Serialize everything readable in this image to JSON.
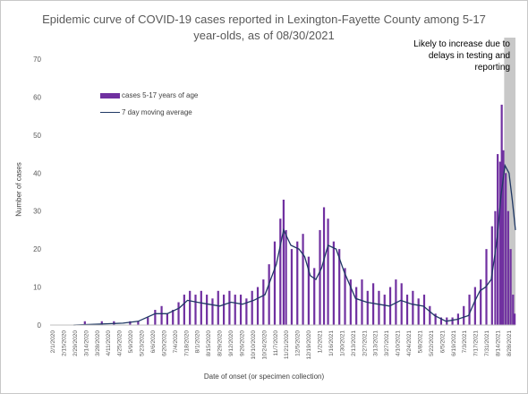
{
  "chart_data": {
    "type": "bar",
    "title": "Epidemic curve of COVID-19 cases reported in Lexington-Fayette County among 5-17 year-olds, as of 08/30/2021",
    "title_lines": [
      "Epidemic curve of COVID-19 cases reported in Lexington-Fayette County among 5-17",
      "year-olds, as of 08/30/2021"
    ],
    "xlabel": "Date of onset (or specimen collection)",
    "ylabel": "Number of cases",
    "ylim": [
      0,
      70
    ],
    "yticks": [
      0,
      10,
      20,
      30,
      40,
      50,
      60,
      70
    ],
    "grid": false,
    "legend_position": "upper-left",
    "x_start": "2020-02-01",
    "x_end": "2021-08-30",
    "xtick_labels": [
      "2/1/2020",
      "2/15/2020",
      "2/29/2020",
      "3/14/2020",
      "3/28/2020",
      "4/11/2020",
      "4/25/2020",
      "5/9/2020",
      "5/23/2020",
      "6/6/2020",
      "6/20/2020",
      "7/4/2020",
      "7/18/2020",
      "8/1/2020",
      "8/15/2020",
      "8/29/2020",
      "9/12/2020",
      "9/26/2020",
      "10/10/2020",
      "10/24/2020",
      "11/7/2020",
      "11/21/2020",
      "12/5/2020",
      "12/19/2020",
      "1/2/2021",
      "1/16/2021",
      "1/30/2021",
      "2/13/2021",
      "2/27/2021",
      "3/13/2021",
      "3/27/2021",
      "4/10/2021",
      "4/24/2021",
      "5/8/2021",
      "5/22/2021",
      "6/5/2021",
      "6/19/2021",
      "7/3/2021",
      "7/17/2021",
      "7/31/2021",
      "8/14/2021",
      "8/28/2021"
    ],
    "shaded_region": {
      "start": "2021-08-16",
      "end": "2021-08-30",
      "annotation_lines": [
        "Likely to increase due to",
        "delays in testing and",
        "reporting"
      ]
    },
    "colors": {
      "bars": "#7030a0",
      "line": "#1f3864",
      "shade": "#c8c8c8",
      "axis": "#bfbfbf"
    },
    "series": [
      {
        "name": "cases 5-17 years of age",
        "kind": "bar",
        "values": [
          {
            "x": "2020-03-15",
            "y": 1
          },
          {
            "x": "2020-04-05",
            "y": 1
          },
          {
            "x": "2020-04-20",
            "y": 1
          },
          {
            "x": "2020-05-10",
            "y": 1
          },
          {
            "x": "2020-05-20",
            "y": 1
          },
          {
            "x": "2020-06-01",
            "y": 2
          },
          {
            "x": "2020-06-10",
            "y": 4
          },
          {
            "x": "2020-06-18",
            "y": 5
          },
          {
            "x": "2020-06-25",
            "y": 3
          },
          {
            "x": "2020-07-02",
            "y": 4
          },
          {
            "x": "2020-07-09",
            "y": 6
          },
          {
            "x": "2020-07-16",
            "y": 8
          },
          {
            "x": "2020-07-23",
            "y": 9
          },
          {
            "x": "2020-07-30",
            "y": 8
          },
          {
            "x": "2020-08-06",
            "y": 9
          },
          {
            "x": "2020-08-13",
            "y": 8
          },
          {
            "x": "2020-08-20",
            "y": 7
          },
          {
            "x": "2020-08-27",
            "y": 9
          },
          {
            "x": "2020-09-03",
            "y": 8
          },
          {
            "x": "2020-09-10",
            "y": 9
          },
          {
            "x": "2020-09-17",
            "y": 8
          },
          {
            "x": "2020-09-24",
            "y": 8
          },
          {
            "x": "2020-10-01",
            "y": 7
          },
          {
            "x": "2020-10-08",
            "y": 9
          },
          {
            "x": "2020-10-15",
            "y": 10
          },
          {
            "x": "2020-10-22",
            "y": 12
          },
          {
            "x": "2020-10-29",
            "y": 16
          },
          {
            "x": "2020-11-05",
            "y": 22
          },
          {
            "x": "2020-11-12",
            "y": 28
          },
          {
            "x": "2020-11-16",
            "y": 33
          },
          {
            "x": "2020-11-19",
            "y": 25
          },
          {
            "x": "2020-11-26",
            "y": 20
          },
          {
            "x": "2020-12-03",
            "y": 22
          },
          {
            "x": "2020-12-10",
            "y": 24
          },
          {
            "x": "2020-12-17",
            "y": 18
          },
          {
            "x": "2020-12-24",
            "y": 15
          },
          {
            "x": "2020-12-31",
            "y": 25
          },
          {
            "x": "2021-01-05",
            "y": 31
          },
          {
            "x": "2021-01-10",
            "y": 28
          },
          {
            "x": "2021-01-17",
            "y": 22
          },
          {
            "x": "2021-01-24",
            "y": 20
          },
          {
            "x": "2021-01-31",
            "y": 15
          },
          {
            "x": "2021-02-07",
            "y": 12
          },
          {
            "x": "2021-02-14",
            "y": 10
          },
          {
            "x": "2021-02-21",
            "y": 12
          },
          {
            "x": "2021-02-28",
            "y": 9
          },
          {
            "x": "2021-03-07",
            "y": 11
          },
          {
            "x": "2021-03-14",
            "y": 9
          },
          {
            "x": "2021-03-21",
            "y": 8
          },
          {
            "x": "2021-03-28",
            "y": 10
          },
          {
            "x": "2021-04-04",
            "y": 12
          },
          {
            "x": "2021-04-11",
            "y": 11
          },
          {
            "x": "2021-04-18",
            "y": 8
          },
          {
            "x": "2021-04-25",
            "y": 9
          },
          {
            "x": "2021-05-02",
            "y": 7
          },
          {
            "x": "2021-05-09",
            "y": 8
          },
          {
            "x": "2021-05-16",
            "y": 5
          },
          {
            "x": "2021-05-23",
            "y": 3
          },
          {
            "x": "2021-05-30",
            "y": 2
          },
          {
            "x": "2021-06-06",
            "y": 2
          },
          {
            "x": "2021-06-13",
            "y": 2
          },
          {
            "x": "2021-06-20",
            "y": 3
          },
          {
            "x": "2021-06-27",
            "y": 5
          },
          {
            "x": "2021-07-04",
            "y": 8
          },
          {
            "x": "2021-07-11",
            "y": 10
          },
          {
            "x": "2021-07-18",
            "y": 12
          },
          {
            "x": "2021-07-25",
            "y": 20
          },
          {
            "x": "2021-08-01",
            "y": 26
          },
          {
            "x": "2021-08-05",
            "y": 30
          },
          {
            "x": "2021-08-08",
            "y": 45
          },
          {
            "x": "2021-08-11",
            "y": 43
          },
          {
            "x": "2021-08-13",
            "y": 58
          },
          {
            "x": "2021-08-15",
            "y": 46
          },
          {
            "x": "2021-08-18",
            "y": 40
          },
          {
            "x": "2021-08-21",
            "y": 30
          },
          {
            "x": "2021-08-24",
            "y": 20
          },
          {
            "x": "2021-08-27",
            "y": 8
          },
          {
            "x": "2021-08-29",
            "y": 3
          }
        ]
      },
      {
        "name": "7 day moving average",
        "kind": "line",
        "values": [
          {
            "x": "2020-03-01",
            "y": 0
          },
          {
            "x": "2020-05-01",
            "y": 0.5
          },
          {
            "x": "2020-05-20",
            "y": 1
          },
          {
            "x": "2020-06-10",
            "y": 3
          },
          {
            "x": "2020-06-25",
            "y": 3
          },
          {
            "x": "2020-07-10",
            "y": 4.5
          },
          {
            "x": "2020-07-20",
            "y": 6.5
          },
          {
            "x": "2020-08-01",
            "y": 6
          },
          {
            "x": "2020-08-15",
            "y": 5.5
          },
          {
            "x": "2020-08-29",
            "y": 5
          },
          {
            "x": "2020-09-12",
            "y": 6
          },
          {
            "x": "2020-09-26",
            "y": 5.5
          },
          {
            "x": "2020-10-10",
            "y": 6.5
          },
          {
            "x": "2020-10-24",
            "y": 8
          },
          {
            "x": "2020-11-07",
            "y": 16
          },
          {
            "x": "2020-11-16",
            "y": 25
          },
          {
            "x": "2020-11-25",
            "y": 21
          },
          {
            "x": "2020-12-05",
            "y": 20
          },
          {
            "x": "2020-12-12",
            "y": 18
          },
          {
            "x": "2020-12-19",
            "y": 13
          },
          {
            "x": "2020-12-26",
            "y": 12
          },
          {
            "x": "2021-01-02",
            "y": 15
          },
          {
            "x": "2021-01-10",
            "y": 21
          },
          {
            "x": "2021-01-20",
            "y": 20
          },
          {
            "x": "2021-01-30",
            "y": 14
          },
          {
            "x": "2021-02-13",
            "y": 7
          },
          {
            "x": "2021-02-27",
            "y": 6
          },
          {
            "x": "2021-03-13",
            "y": 5.5
          },
          {
            "x": "2021-03-27",
            "y": 5
          },
          {
            "x": "2021-04-10",
            "y": 6.5
          },
          {
            "x": "2021-04-24",
            "y": 5.5
          },
          {
            "x": "2021-05-08",
            "y": 5
          },
          {
            "x": "2021-05-22",
            "y": 2.5
          },
          {
            "x": "2021-06-05",
            "y": 1
          },
          {
            "x": "2021-06-19",
            "y": 1.5
          },
          {
            "x": "2021-07-03",
            "y": 2.5
          },
          {
            "x": "2021-07-10",
            "y": 6
          },
          {
            "x": "2021-07-17",
            "y": 9
          },
          {
            "x": "2021-07-24",
            "y": 10
          },
          {
            "x": "2021-07-31",
            "y": 12
          },
          {
            "x": "2021-08-07",
            "y": 22
          },
          {
            "x": "2021-08-12",
            "y": 34
          },
          {
            "x": "2021-08-17",
            "y": 42
          },
          {
            "x": "2021-08-22",
            "y": 40
          },
          {
            "x": "2021-08-26",
            "y": 33
          },
          {
            "x": "2021-08-30",
            "y": 25
          }
        ]
      }
    ]
  }
}
